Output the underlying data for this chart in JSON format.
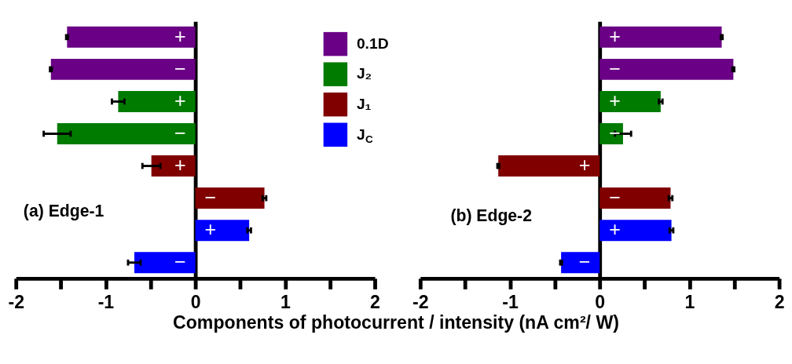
{
  "chart_data": [
    {
      "type": "bar",
      "orientation": "horizontal",
      "categories": [
        "+",
        "−",
        "+",
        "−",
        "+",
        "−",
        "+",
        "−"
      ],
      "xlabel": "Components of photocurrent / intensity (nA cm²/ W)",
      "annotations": [
        "(a) Edge-1"
      ],
      "series": [
        {
          "name": "0.1D",
          "color": "#6a0085",
          "values": [
            -1.43,
            -1.61,
            null,
            null,
            null,
            null,
            null,
            null
          ],
          "errors": [
            0.01,
            0.01,
            null,
            null,
            null,
            null,
            null,
            null
          ]
        },
        {
          "name": "J₂",
          "color": "#007b00",
          "values": [
            null,
            null,
            -0.86,
            -1.54,
            null,
            null,
            null,
            null
          ],
          "errors": [
            null,
            null,
            0.07,
            0.15,
            null,
            null,
            null,
            null
          ]
        },
        {
          "name": "J₁",
          "color": "#800000",
          "values": [
            null,
            null,
            null,
            null,
            -0.49,
            0.77,
            null,
            null
          ],
          "errors": [
            null,
            null,
            null,
            null,
            0.1,
            0.02,
            null,
            null
          ]
        },
        {
          "name": "J$_{C}$",
          "color": "#0000ff",
          "values": [
            null,
            null,
            null,
            null,
            null,
            null,
            0.6,
            -0.68
          ],
          "errors": [
            null,
            null,
            null,
            null,
            null,
            null,
            0.02,
            0.07
          ]
        }
      ],
      "xlim": [
        -2,
        2
      ],
      "xticks": [
        -2,
        {
          "value": -1.5,
          "label": null
        },
        -1,
        {
          "value": -0.5,
          "label": null
        },
        0,
        {
          "value": 0.5,
          "label": null
        },
        1,
        {
          "value": 1.5,
          "label": null
        },
        2
      ],
      "legend": "top right",
      "grid": false
    },
    {
      "type": "bar",
      "orientation": "horizontal",
      "categories": [
        "+",
        "−",
        "+",
        "−",
        "+",
        "−",
        "+",
        "−"
      ],
      "annotations": [
        "(b) Edge-2"
      ],
      "series": [
        {
          "color": "#6a0085",
          "values": [
            1.36,
            1.49,
            null,
            null,
            null,
            null,
            null,
            null
          ],
          "errors": [
            0.01,
            0.01,
            null,
            null,
            null,
            null,
            null,
            null
          ]
        },
        {
          "color": "#007b00",
          "values": [
            null,
            null,
            0.68,
            0.26,
            null,
            null,
            null,
            null
          ],
          "errors": [
            null,
            null,
            0.02,
            0.09,
            null,
            null,
            null,
            null
          ]
        },
        {
          "color": "#800000",
          "values": [
            null,
            null,
            null,
            null,
            -1.13,
            0.79,
            null,
            null
          ],
          "errors": [
            null,
            null,
            null,
            null,
            0.01,
            0.02,
            null,
            null
          ]
        },
        {
          "color": "#0000ff",
          "values": [
            null,
            null,
            null,
            null,
            null,
            null,
            0.8,
            -0.43
          ],
          "errors": [
            null,
            null,
            null,
            null,
            null,
            null,
            0.02,
            0.01
          ]
        }
      ],
      "xlim": [
        -2,
        2
      ],
      "xticks": [
        -2,
        {
          "value": -1.5,
          "label": null
        },
        -1,
        {
          "value": -0.5,
          "label": null
        },
        0,
        {
          "value": 0.5,
          "label": null
        },
        1,
        {
          "value": 1.5,
          "label": null
        },
        2
      ],
      "legend": false,
      "grid": false
    }
  ]
}
